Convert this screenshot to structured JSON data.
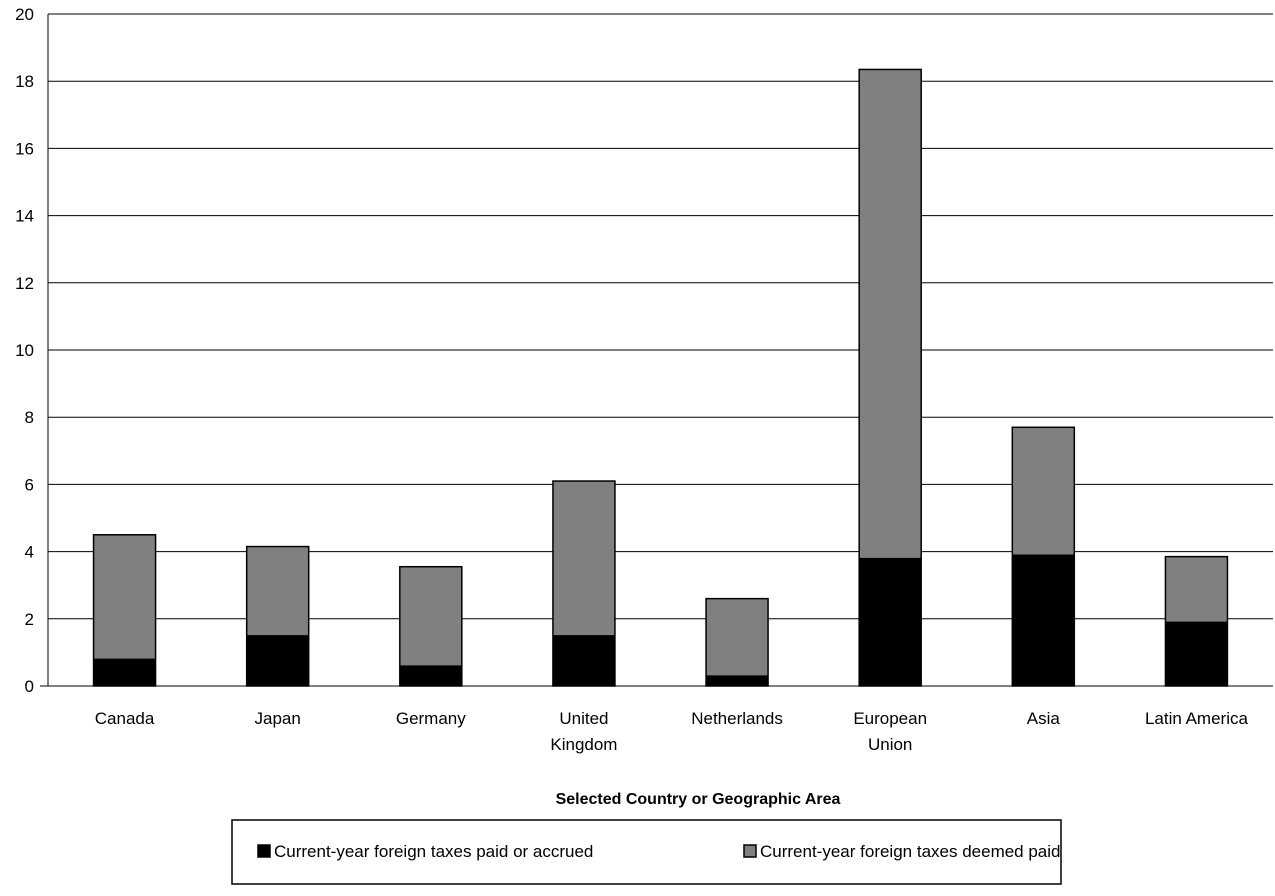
{
  "chart_data": {
    "type": "bar",
    "stacked": true,
    "title": "",
    "xlabel": "Selected Country or Geographic Area",
    "ylabel": "",
    "ylim": [
      0,
      20
    ],
    "yticks": [
      0,
      2,
      4,
      6,
      8,
      10,
      12,
      14,
      16,
      18,
      20
    ],
    "grid": true,
    "legend_position": "bottom",
    "categories": [
      [
        "Canada"
      ],
      [
        "Japan"
      ],
      [
        "Germany"
      ],
      [
        "United",
        "Kingdom"
      ],
      [
        "Netherlands"
      ],
      [
        "European",
        "Union"
      ],
      [
        "Asia"
      ],
      [
        "Latin America"
      ]
    ],
    "series": [
      {
        "name": "Current-year foreign taxes paid or accrued",
        "color": "#000000",
        "values": [
          0.8,
          1.5,
          0.6,
          1.5,
          0.3,
          3.8,
          3.9,
          1.9
        ]
      },
      {
        "name": "Current-year foreign taxes deemed paid",
        "color": "#808080",
        "values": [
          3.7,
          2.65,
          2.95,
          4.6,
          2.3,
          14.55,
          3.8,
          1.95
        ]
      }
    ]
  }
}
